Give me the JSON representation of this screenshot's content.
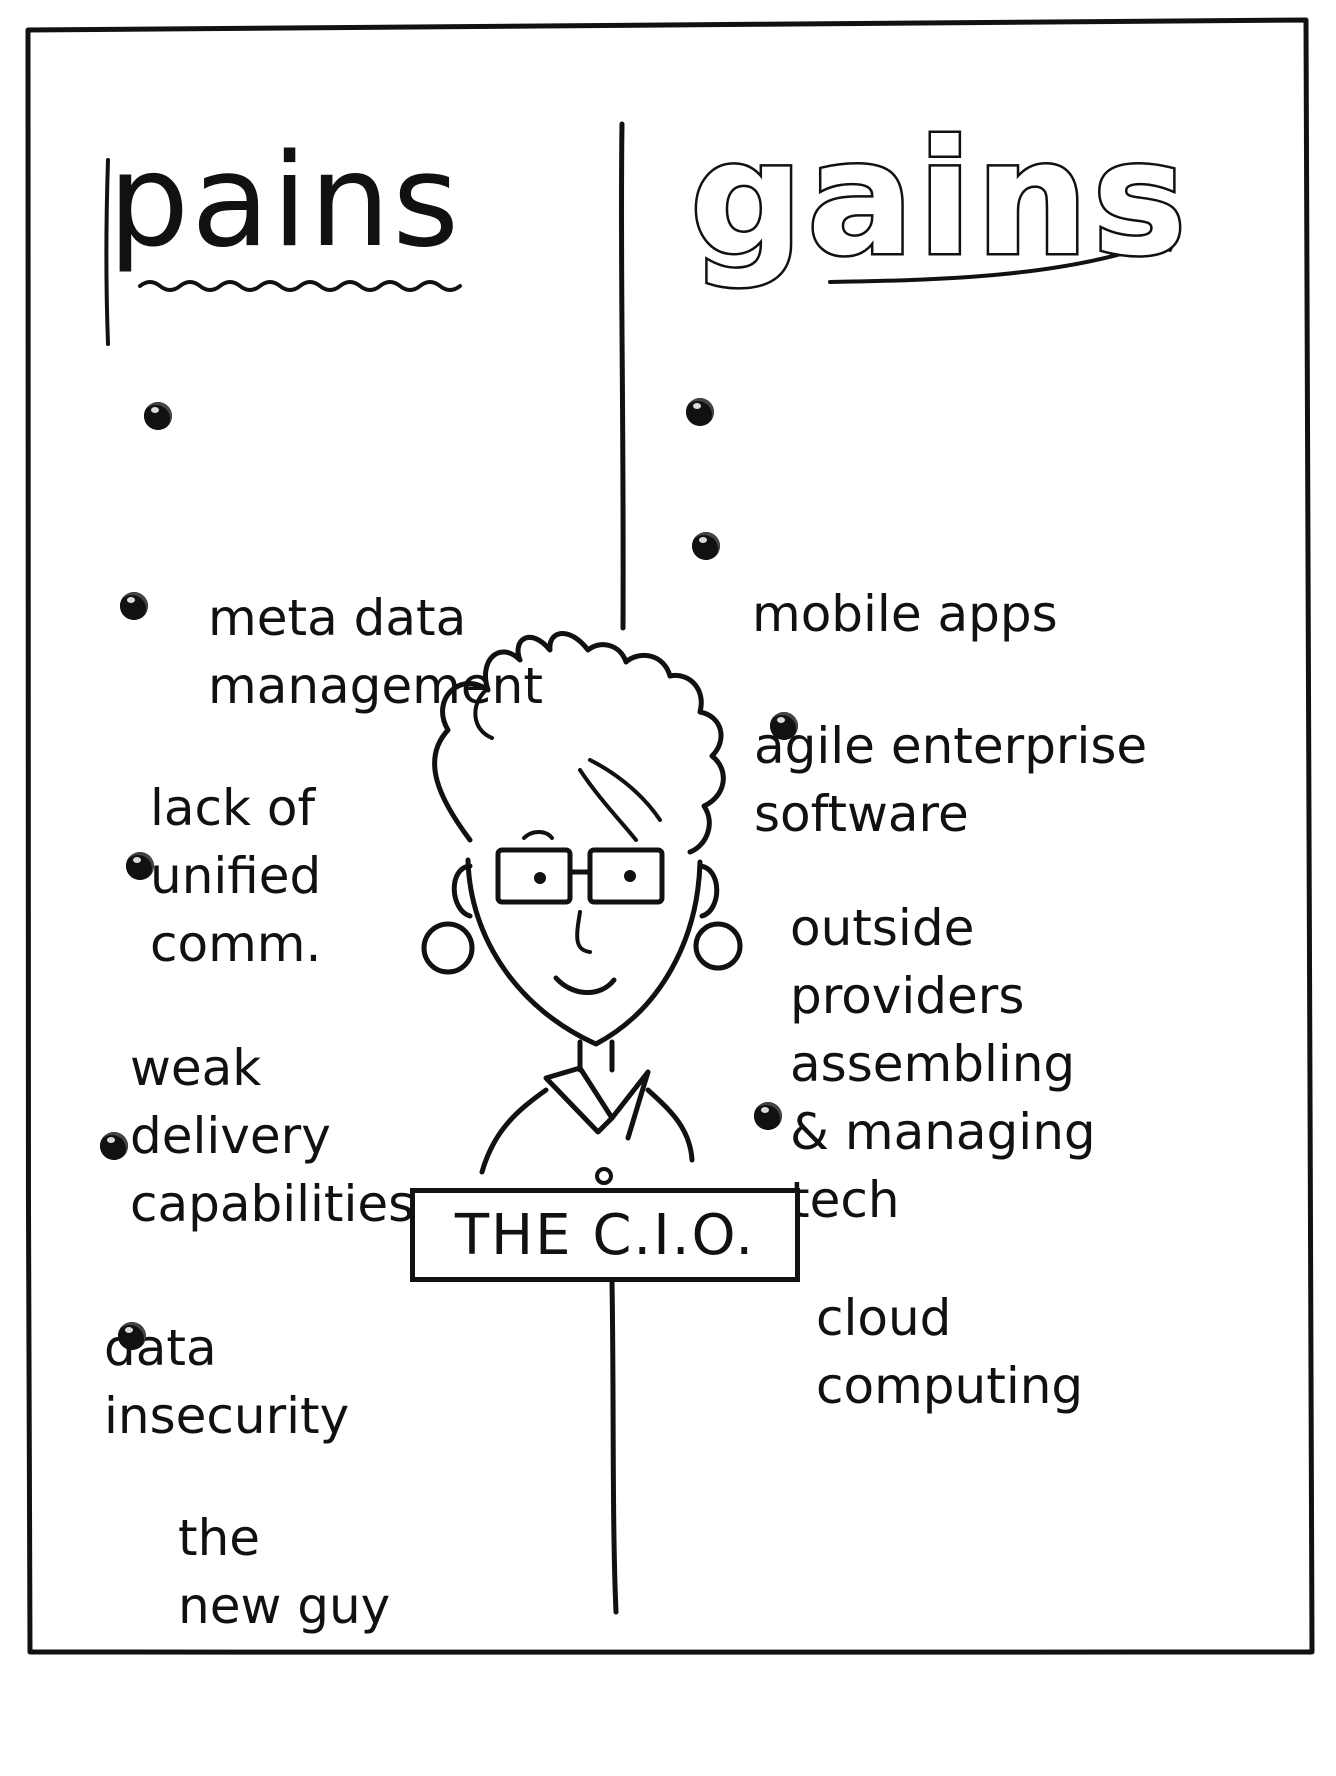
{
  "pains": {
    "title": "pains",
    "items": [
      "meta data\nmanagement",
      "lack of\nunified\ncomm.",
      "weak\ndelivery\ncapabilities",
      "data\ninsecurity",
      "the\nnew guy"
    ]
  },
  "gains": {
    "title": "gains",
    "items": [
      "mobile apps",
      "agile enterprise\nsoftware",
      "outside\nproviders\nassembling\n& managing\ntech",
      "cloud\ncomputing"
    ]
  },
  "figure": {
    "sign_label": "THE C.I.O.",
    "icon": "cio-person-icon"
  },
  "colors": {
    "ink": "#111111",
    "paper": "#ffffff"
  }
}
